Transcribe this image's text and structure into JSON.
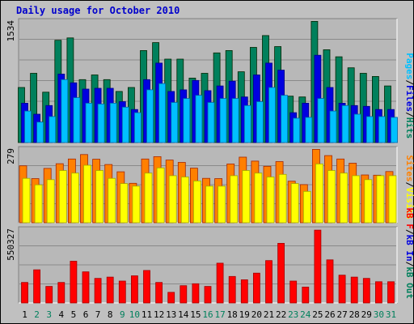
{
  "title": "Daily usage for October 2010",
  "colors": {
    "background": "#c0c0c0",
    "panel": "#b8b8b8",
    "title": "#0000cc",
    "hits": "#00805c",
    "files": "#0000e0",
    "pages": "#00c0ff",
    "visits": "#ffff00",
    "sites": "#ff8000",
    "kbytes": "#ff0000",
    "kb_in": "#0000e0",
    "kb_out": "#00805c",
    "weekend_day": "#00805c",
    "weekday_day": "#000000"
  },
  "chart_data": [
    {
      "type": "bar",
      "panel": "requests",
      "max_label": "1534",
      "legend": [
        {
          "text": "Pages",
          "color_key": "pages"
        },
        {
          "text": "/",
          "color_key": "sep"
        },
        {
          "text": "Files",
          "color_key": "files"
        },
        {
          "text": "/",
          "color_key": "sep"
        },
        {
          "text": "Hits",
          "color_key": "hits"
        }
      ],
      "ylim": [
        0,
        1534
      ],
      "series": [
        {
          "name": "Hits",
          "color_key": "hits",
          "values": [
            700,
            880,
            640,
            1300,
            1330,
            800,
            860,
            800,
            650,
            700,
            1170,
            1270,
            1060,
            1060,
            820,
            880,
            1140,
            1170,
            900,
            1210,
            1360,
            1220,
            590,
            580,
            1540,
            1180,
            1090,
            950,
            880,
            840,
            720
          ]
        },
        {
          "name": "Files",
          "color_key": "files",
          "values": [
            500,
            360,
            470,
            870,
            760,
            680,
            690,
            690,
            520,
            420,
            800,
            1010,
            650,
            670,
            790,
            660,
            720,
            780,
            580,
            860,
            1010,
            920,
            380,
            500,
            1110,
            700,
            500,
            470,
            460,
            420,
            420
          ]
        },
        {
          "name": "Pages",
          "color_key": "pages",
          "values": [
            400,
            260,
            330,
            800,
            570,
            500,
            490,
            500,
            450,
            380,
            670,
            750,
            510,
            560,
            600,
            510,
            560,
            560,
            470,
            520,
            700,
            600,
            310,
            320,
            560,
            400,
            470,
            360,
            330,
            330,
            320
          ]
        }
      ]
    },
    {
      "type": "bar",
      "panel": "sites",
      "max_label": "279",
      "legend": [
        {
          "text": "Sites",
          "color_key": "sites"
        },
        {
          "text": "/",
          "color_key": "sep"
        },
        {
          "text": "Visits",
          "color_key": "visits"
        }
      ],
      "ylim": [
        0,
        279
      ],
      "series": [
        {
          "name": "Sites",
          "color_key": "sites",
          "values": [
            218,
            169,
            208,
            226,
            244,
            261,
            243,
            223,
            195,
            151,
            244,
            253,
            240,
            231,
            209,
            170,
            169,
            225,
            251,
            236,
            216,
            234,
            159,
            146,
            281,
            257,
            244,
            228,
            183,
            182,
            196
          ]
        },
        {
          "name": "Visits",
          "color_key": "visits",
          "values": [
            170,
            145,
            165,
            200,
            190,
            220,
            200,
            170,
            150,
            140,
            190,
            210,
            180,
            175,
            160,
            140,
            140,
            180,
            200,
            190,
            175,
            185,
            150,
            120,
            225,
            200,
            190,
            180,
            165,
            180,
            180
          ]
        }
      ]
    },
    {
      "type": "bar",
      "panel": "kbytes",
      "max_label": "550327",
      "legend": [
        {
          "text": "kB F",
          "color_key": "kbytes"
        },
        {
          "text": "/",
          "color_key": "sep"
        },
        {
          "text": "kB In",
          "color_key": "kb_in"
        },
        {
          "text": "/",
          "color_key": "sep"
        },
        {
          "text": "kB Out",
          "color_key": "kb_out"
        }
      ],
      "ylim": [
        0,
        550327
      ],
      "series": [
        {
          "name": "kB F",
          "color_key": "kbytes",
          "values": [
            155000,
            250000,
            125000,
            155000,
            315000,
            235000,
            185000,
            195000,
            165000,
            205000,
            245000,
            155000,
            80000,
            130000,
            145000,
            125000,
            300000,
            200000,
            175000,
            225000,
            320000,
            450000,
            165000,
            120000,
            550000,
            325000,
            210000,
            195000,
            185000,
            160000,
            160000
          ]
        }
      ]
    }
  ],
  "days": [
    {
      "label": "1",
      "weekend": false
    },
    {
      "label": "2",
      "weekend": true
    },
    {
      "label": "3",
      "weekend": true
    },
    {
      "label": "4",
      "weekend": false
    },
    {
      "label": "5",
      "weekend": false
    },
    {
      "label": "6",
      "weekend": false
    },
    {
      "label": "7",
      "weekend": false
    },
    {
      "label": "8",
      "weekend": false
    },
    {
      "label": "9",
      "weekend": true
    },
    {
      "label": "10",
      "weekend": true
    },
    {
      "label": "11",
      "weekend": false
    },
    {
      "label": "12",
      "weekend": false
    },
    {
      "label": "13",
      "weekend": false
    },
    {
      "label": "14",
      "weekend": false
    },
    {
      "label": "15",
      "weekend": false
    },
    {
      "label": "16",
      "weekend": true
    },
    {
      "label": "17",
      "weekend": true
    },
    {
      "label": "18",
      "weekend": false
    },
    {
      "label": "19",
      "weekend": false
    },
    {
      "label": "20",
      "weekend": false
    },
    {
      "label": "21",
      "weekend": false
    },
    {
      "label": "22",
      "weekend": false
    },
    {
      "label": "23",
      "weekend": true
    },
    {
      "label": "24",
      "weekend": true
    },
    {
      "label": "25",
      "weekend": false
    },
    {
      "label": "26",
      "weekend": false
    },
    {
      "label": "27",
      "weekend": false
    },
    {
      "label": "28",
      "weekend": false
    },
    {
      "label": "29",
      "weekend": false
    },
    {
      "label": "30",
      "weekend": true
    },
    {
      "label": "31",
      "weekend": true
    }
  ]
}
